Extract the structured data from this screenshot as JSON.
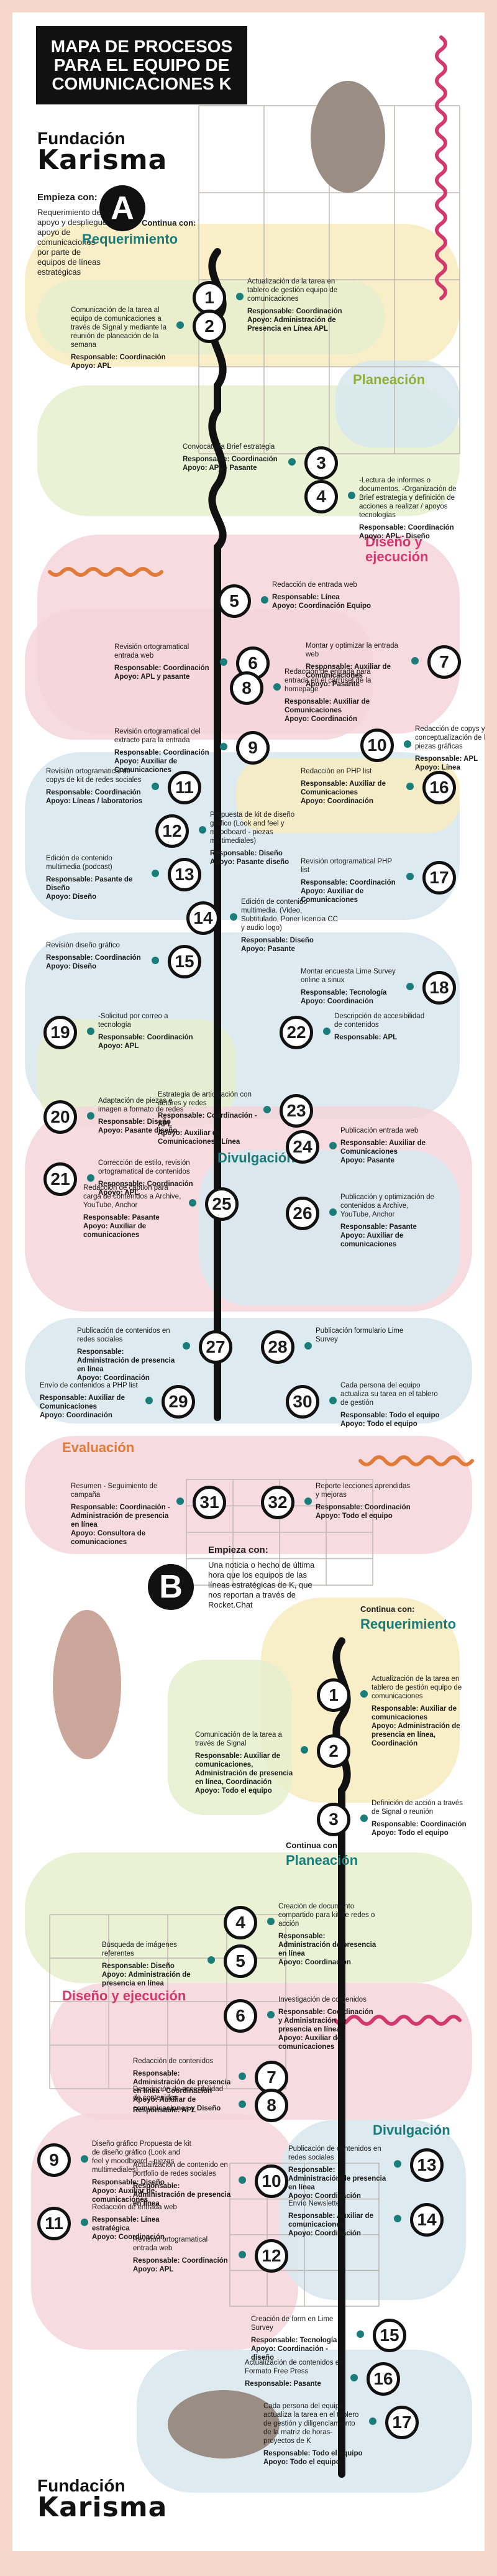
{
  "title": "MAPA DE PROCESOS PARA EL EQUIPO DE COMUNICACIONES K",
  "logo": {
    "line1": "Fundación",
    "line2": "Karisma"
  },
  "colors": {
    "green": "#e6efcc",
    "blue": "#d7e7ee",
    "pink": "#f4d5dc",
    "yellow": "#f7ecc0",
    "teal": "#1a7d7a",
    "magenta": "#d23a6e",
    "orange": "#e07b3a",
    "dark": "#111111"
  },
  "sectionA": {
    "letter": "A",
    "intro_head": "Empieza con:",
    "intro_text": "Requerimiento de apoyo y despliegue apoyo de comunicaciones por parte de equipos de líneas estratégicas",
    "phases": {
      "requerimiento": {
        "pre": "Continua con:",
        "name": "Requerimiento"
      },
      "planeacion": {
        "name": "Planeación"
      },
      "diseno": {
        "name": "Diseño y ejecución"
      },
      "divulgacion": {
        "name": "Divulgación"
      },
      "evaluacion": {
        "name": "Evaluación"
      }
    },
    "steps": [
      {
        "n": "1",
        "text": "Actualización de la tarea en tablero de gestión equipo de comunicaciones",
        "resp": "Responsable: Coordinación",
        "apoyo": "Apoyo: Administración de Presencia en Línea APL"
      },
      {
        "n": "2",
        "text": "Comunicación de la tarea al equipo de comunicaciones a través de Signal y mediante la reunión de planeación de la semana",
        "resp": "Responsable: Coordinación",
        "apoyo": "Apoyo: APL"
      },
      {
        "n": "3",
        "text": "Convocatoria Brief estrategia",
        "resp": "Responsable: Coordinación",
        "apoyo": "Apoyo: APL - Pasante"
      },
      {
        "n": "4",
        "text": "-Lectura de informes o documentos. -Organización de Brief estrategia y definición de acciones a realizar / apoyos tecnologías",
        "resp": "Responsable: Coordinación",
        "apoyo": "Apoyo: APL - Diseño"
      },
      {
        "n": "5",
        "text": "Redacción de entrada web",
        "resp": "Responsable: Línea",
        "apoyo": "Apoyo: Coordinación Equipo"
      },
      {
        "n": "6",
        "text": "Revisión ortogramatical entrada web",
        "resp": "Responsable: Coordinación",
        "apoyo": "Apoyo: APL y pasante"
      },
      {
        "n": "7",
        "text": "Montar y optimizar la entrada web",
        "resp": "Responsable: Auxiliar de Comunicaciones",
        "apoyo": "Apoyo: Pasante"
      },
      {
        "n": "8",
        "text": "Redacción de entrada para entrada en el carrusel de la homepage",
        "resp": "Responsable: Auxiliar de Comunicaciones",
        "apoyo": "Apoyo: Coordinación"
      },
      {
        "n": "9",
        "text": "Revisión ortogramatical del extracto para la entrada",
        "resp": "Responsable: Coordinación",
        "apoyo": "Apoyo: Auxiliar de Comunicaciones"
      },
      {
        "n": "10",
        "text": "Redacción de copys y conceptualización de las piezas gráficas",
        "resp": "Responsable: APL",
        "apoyo": "Apoyo: Línea"
      },
      {
        "n": "11",
        "text": "Revisión ortogramatical de copys de kit de redes sociales",
        "resp": "Responsable: Coordinación",
        "apoyo": "Apoyo: Líneas / laboratorios"
      },
      {
        "n": "12",
        "text": "Propuesta de kit de diseño gráfico (Look and feel y moodboard - piezas multimediales)",
        "resp": "Responsable: Diseño",
        "apoyo": "Apoyo: Pasante diseño"
      },
      {
        "n": "13",
        "text": "Edición de contenido multimedia (podcast)",
        "resp": "Responsable: Pasante de Diseño",
        "apoyo": "Apoyo: Diseño"
      },
      {
        "n": "14",
        "text": "Edición de contenido multimedia. (Video, Subtitulado, Poner licencia CC y audio logo)",
        "resp": "Responsable: Diseño",
        "apoyo": "Apoyo: Pasante"
      },
      {
        "n": "15",
        "text": "Revisión diseño gráfico",
        "resp": "Responsable: Coordinación",
        "apoyo": "Apoyo: Diseño"
      },
      {
        "n": "16",
        "text": "Redacción en PHP list",
        "resp": "Responsable: Auxiliar de Comunicaciones",
        "apoyo": "Apoyo: Coordinación"
      },
      {
        "n": "17",
        "text": "Revisión ortogramatical PHP list",
        "resp": "Responsable: Coordinación",
        "apoyo": "Apoyo: Auxiliar de Comunicaciones"
      },
      {
        "n": "18",
        "text": "Montar encuesta Lime Survey online a sinux",
        "resp": "Responsable: Tecnología",
        "apoyo": "Apoyo: Coordinación"
      },
      {
        "n": "19",
        "text": "-Solicitud por correo a tecnología",
        "resp": "Responsable: Coordinación",
        "apoyo": "Apoyo: APL"
      },
      {
        "n": "20",
        "text": "Adaptación de piezas e imagen a formato de redes",
        "resp": "Responsable: Diseño",
        "apoyo": "Apoyo: Pasante diseño"
      },
      {
        "n": "21",
        "text": "Corrección de estilo, revisión ortogramatical de contenidos",
        "resp": "Responsable: Coordinación",
        "apoyo": "Apoyo: APL"
      },
      {
        "n": "22",
        "text": "Descripción de accesibilidad de contenidos",
        "resp": "Responsable: APL",
        "apoyo": ""
      },
      {
        "n": "23",
        "text": "Estrategia de articulación con actores y redes",
        "resp": "Responsable: Coordinación - APL",
        "apoyo": "Apoyo: Auxiliar de Comunicaciones - Línea"
      },
      {
        "n": "24",
        "text": "Publicación entrada web",
        "resp": "Responsable: Auxiliar de Comunicaciones",
        "apoyo": "Apoyo: Pasante"
      },
      {
        "n": "25",
        "text": "Redacción de caption para carga de contenidos a Archive, YouTube, Anchor",
        "resp": "Responsable: Pasante",
        "apoyo": "Apoyo: Auxiliar de comunicaciones"
      },
      {
        "n": "26",
        "text": "Publicación y optimización de contenidos a Archive, YouTube, Anchor",
        "resp": "Responsable: Pasante",
        "apoyo": "Apoyo: Auxiliar de comunicaciones"
      },
      {
        "n": "27",
        "text": "Publicación de contenidos en redes sociales",
        "resp": "Responsable: Administración de presencia en línea",
        "apoyo": "Apoyo: Coordinación"
      },
      {
        "n": "28",
        "text": "Publicación formulario Lime Survey",
        "resp": "",
        "apoyo": ""
      },
      {
        "n": "29",
        "text": "Envío de contenidos a PHP list",
        "resp": "Responsable: Auxiliar de Comunicaciones",
        "apoyo": "Apoyo: Coordinación"
      },
      {
        "n": "30",
        "text": "Cada persona del equipo actualiza su tarea en el tablero de gestión",
        "resp": "Responsable: Todo el equipo",
        "apoyo": "Apoyo: Todo el equipo"
      },
      {
        "n": "31",
        "text": "Resumen - Seguimiento de campaña",
        "resp": "Responsable: Coordinación - Administración de presencia en línea",
        "apoyo": "Apoyo: Consultora de comunicaciones"
      },
      {
        "n": "32",
        "text": "Reporte lecciones aprendidas y mejoras",
        "resp": "Responsable: Coordinación",
        "apoyo": "Apoyo: Todo el equipo"
      }
    ]
  },
  "sectionB": {
    "letter": "B",
    "intro_head": "Empieza con:",
    "intro_text": "Una noticia o hecho de última hora que los equipos de las líneas estratégicas de K, que nos reportan a través de Rocket.Chat",
    "phases": {
      "requerimiento": {
        "pre": "Continua con:",
        "name": "Requerimiento"
      },
      "planeacion": {
        "pre": "Continua con:",
        "name": "Planeación"
      },
      "diseno": {
        "name": "Diseño y ejecución"
      },
      "divulgacion": {
        "name": "Divulgación"
      }
    },
    "steps": [
      {
        "n": "1",
        "text": "Actualización de la tarea en tablero de gestión equipo de comunicaciones",
        "resp": "Responsable: Auxiliar de comunicaciones",
        "apoyo": "Apoyo: Administración de presencia en línea, Coordinación"
      },
      {
        "n": "2",
        "text": "Comunicación de la tarea a través de Signal",
        "resp": "Responsable: Auxiliar de comunicaciones, Administración de presencia en línea, Coordinación",
        "apoyo": "Apoyo: Todo el equipo"
      },
      {
        "n": "3",
        "text": "Definición de acción a través de Signal o reunión",
        "resp": "Responsable: Coordinación",
        "apoyo": "Apoyo: Todo el equipo"
      },
      {
        "n": "4",
        "text": "Creación de documento compartido para kit de redes o acción",
        "resp": "Responsable: Administración de presencia en línea",
        "apoyo": "Apoyo: Coordinación"
      },
      {
        "n": "5",
        "text": "Búsqueda de imágenes referentes",
        "resp": "Responsable: Diseño",
        "apoyo": "Apoyo: Administración de presencia en línea"
      },
      {
        "n": "6",
        "text": "Investigación de contenidos",
        "resp": "Responsable: Coordinación y Administración de presencia en línea",
        "apoyo": "Apoyo: Auxiliar de comunicaciones"
      },
      {
        "n": "7",
        "text": "Redacción de contenidos",
        "resp": "Responsable: Administración de presencia en línea - Coordinación",
        "apoyo": "Apoyo: Auxiliar de comunicaciones y Diseño"
      },
      {
        "n": "8",
        "text": "Descripción de accesibilidad de contenidos",
        "resp": "Responsable: APL",
        "apoyo": ""
      },
      {
        "n": "9",
        "text": "Diseño gráfico Propuesta de kit de diseño gráfico (Look and feel y moodboard - piezas multimediales)",
        "resp": "Responsable: Diseño",
        "apoyo": "Apoyo: Auxiliar de comunicaciones"
      },
      {
        "n": "10",
        "text": "Actualización de contenido en portfolio de redes sociales",
        "resp": "Responsable: Administración de presencia en línea",
        "apoyo": ""
      },
      {
        "n": "11",
        "text": "Redacción de entrada web",
        "resp": "Responsable: Línea estratégica",
        "apoyo": "Apoyo: Coordinación"
      },
      {
        "n": "12",
        "text": "Revisión ortogramatical entrada web",
        "resp": "Responsable: Coordinación",
        "apoyo": "Apoyo: APL"
      },
      {
        "n": "13",
        "text": "Publicación de contenidos en redes sociales",
        "resp": "Responsable: Administración de presencia en línea",
        "apoyo": "Apoyo: Coordinación"
      },
      {
        "n": "14",
        "text": "Envío Newsletter",
        "resp": "Responsable: Auxiliar de comunicaciones",
        "apoyo": "Apoyo: Coordinación"
      },
      {
        "n": "15",
        "text": "Creación de form en Lime Survey",
        "resp": "Responsable: Tecnología",
        "apoyo": "Apoyo: Coordinación - diseño"
      },
      {
        "n": "16",
        "text": "Actualización de contenidos en Formato Free Press",
        "resp": "Responsable: Pasante",
        "apoyo": ""
      },
      {
        "n": "17",
        "text": "Cada persona del equipo actualiza la tarea en el tablero de gestión y diligenciamiento de la matriz de horas-proyectos de K",
        "resp": "Responsable: Todo el equipo",
        "apoyo": "Apoyo: Todo el equipo"
      }
    ]
  }
}
